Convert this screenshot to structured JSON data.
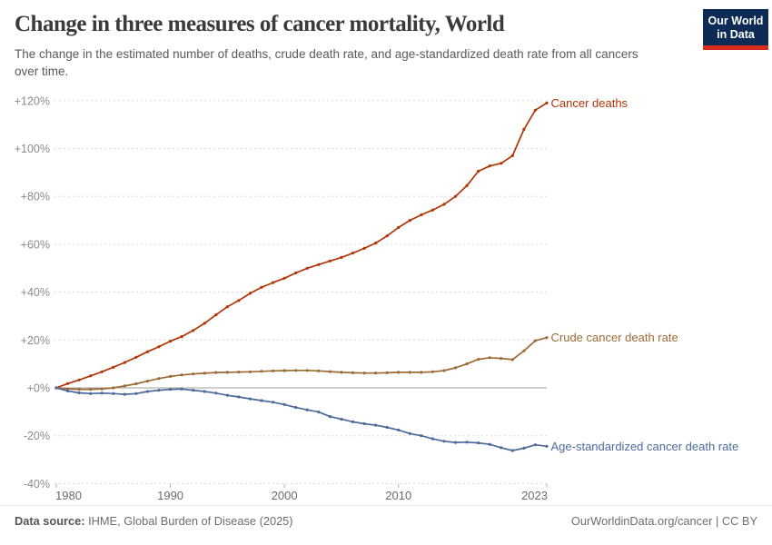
{
  "header": {
    "title": "Change in three measures of cancer mortality, World",
    "subtitle": "The change in the estimated number of deaths, crude death rate, and age-standardized death rate from all cancers over time.",
    "logo": {
      "line1": "Our World",
      "line2": "in Data",
      "bg_color": "#0d2b55",
      "accent_color": "#da2c1d"
    }
  },
  "footer": {
    "datasource_label": "Data source:",
    "datasource_value": " IHME, Global Burden of Disease (2025)",
    "license_text": "OurWorldinData.org/cancer | CC BY"
  },
  "chart_data": {
    "type": "line",
    "title": "Change in three measures of cancer mortality, World",
    "xlabel": "",
    "ylabel": "",
    "xlim": [
      1980,
      2023
    ],
    "ylim": [
      -40,
      120
    ],
    "grid": "horizontal-dashed",
    "zero_line": true,
    "legend_position": "end-of-line-labels",
    "x": [
      1980,
      1981,
      1982,
      1983,
      1984,
      1985,
      1986,
      1987,
      1988,
      1989,
      1990,
      1991,
      1992,
      1993,
      1994,
      1995,
      1996,
      1997,
      1998,
      1999,
      2000,
      2001,
      2002,
      2003,
      2004,
      2005,
      2006,
      2007,
      2008,
      2009,
      2010,
      2011,
      2012,
      2013,
      2014,
      2015,
      2016,
      2017,
      2018,
      2019,
      2020,
      2021,
      2022,
      2023
    ],
    "y_ticks": [
      {
        "value": 120,
        "label": "+120%"
      },
      {
        "value": 100,
        "label": "+100%"
      },
      {
        "value": 80,
        "label": "+80%"
      },
      {
        "value": 60,
        "label": "+60%"
      },
      {
        "value": 40,
        "label": "+40%"
      },
      {
        "value": 20,
        "label": "+20%"
      },
      {
        "value": 0,
        "label": "+0%"
      },
      {
        "value": -20,
        "label": "-20%"
      },
      {
        "value": -40,
        "label": "-40%"
      }
    ],
    "x_ticks": [
      {
        "value": 1980,
        "label": "1980",
        "align": "start"
      },
      {
        "value": 1990,
        "label": "1990",
        "align": "middle"
      },
      {
        "value": 2000,
        "label": "2000",
        "align": "middle"
      },
      {
        "value": 2010,
        "label": "2010",
        "align": "middle"
      },
      {
        "value": 2023,
        "label": "2023",
        "align": "end"
      }
    ],
    "series": [
      {
        "name": "Cancer deaths",
        "color": "#b13507",
        "unit": "%",
        "values": [
          0,
          1.8,
          3.3,
          5,
          6.7,
          8.6,
          10.6,
          12.8,
          15.1,
          17.2,
          19.5,
          21.4,
          24,
          27,
          30.5,
          33.9,
          36.5,
          39.5,
          42,
          44,
          45.8,
          48,
          50,
          51.5,
          53,
          54.5,
          56.3,
          58.3,
          60.5,
          63.5,
          67,
          70,
          72.3,
          74.3,
          76.7,
          80,
          84.5,
          90.5,
          92.7,
          93.8,
          97,
          108,
          116,
          119
        ]
      },
      {
        "name": "Crude cancer death rate",
        "color": "#9d6b35",
        "unit": "%",
        "values": [
          0,
          -0.4,
          -0.6,
          -0.6,
          -0.4,
          0,
          0.8,
          1.7,
          2.8,
          3.9,
          4.8,
          5.4,
          5.8,
          6.1,
          6.4,
          6.5,
          6.6,
          6.7,
          6.9,
          7.1,
          7.2,
          7.3,
          7.3,
          7.1,
          6.8,
          6.5,
          6.3,
          6.2,
          6.2,
          6.3,
          6.5,
          6.5,
          6.5,
          6.7,
          7.2,
          8.4,
          10,
          11.9,
          12.6,
          12.3,
          11.8,
          15.5,
          19.7,
          21
        ]
      },
      {
        "name": "Age-standardized cancer death rate",
        "color": "#4c6a9c",
        "unit": "%",
        "values": [
          0,
          -1.3,
          -2.1,
          -2.4,
          -2.2,
          -2.4,
          -2.7,
          -2.4,
          -1.5,
          -1,
          -0.6,
          -0.5,
          -1,
          -1.5,
          -2.2,
          -3.1,
          -3.8,
          -4.6,
          -5.3,
          -6,
          -7,
          -8.2,
          -9.2,
          -10.1,
          -12,
          -13.1,
          -14.2,
          -15,
          -15.6,
          -16.5,
          -17.6,
          -19.1,
          -20,
          -21.3,
          -22.3,
          -22.8,
          -22.7,
          -23,
          -23.6,
          -25,
          -26.2,
          -25.2,
          -23.8,
          -24.4
        ]
      }
    ]
  }
}
